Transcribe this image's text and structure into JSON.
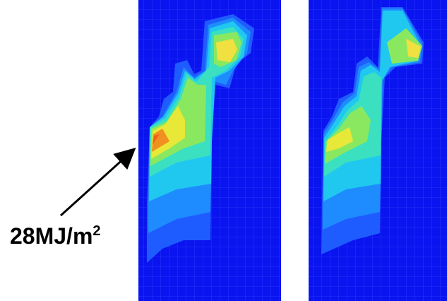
{
  "annotation": {
    "text": "28MJ/m",
    "superscript": "2"
  }
}
